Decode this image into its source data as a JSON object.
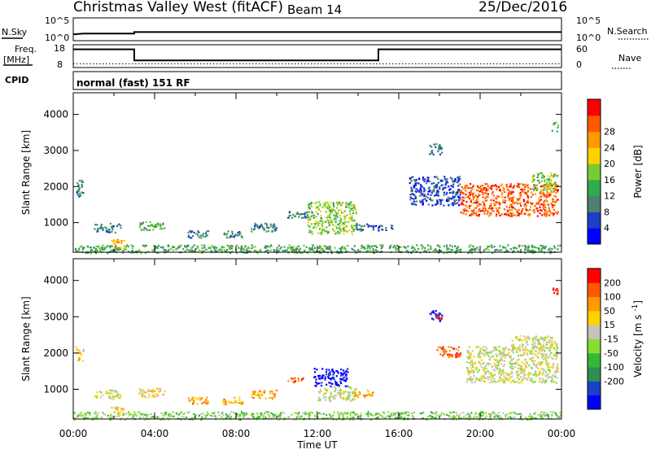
{
  "header": {
    "title": "Christmas Valley West (fitACF)",
    "beam": "Beam 14",
    "date": "25/Dec/2016"
  },
  "strip_labels": {
    "nsky": "N.Sky",
    "nsearch": "N.Search",
    "freq_line1": "Freq.",
    "freq_line2": "[MHz]",
    "nave": "Nave",
    "cpid": "CPID",
    "mode": "normal (fast) 151 RF"
  },
  "strip_ticks": {
    "noise_left": [
      "10^5",
      "10^0"
    ],
    "noise_right": [
      "10^5",
      "10^0"
    ],
    "freq_left": [
      "18",
      "8"
    ],
    "freq_right": [
      "60",
      "0"
    ]
  },
  "colors": {
    "frame": "#000000",
    "background": "#ffffff"
  },
  "chart_data": [
    {
      "type": "heatmap",
      "name": "power",
      "ylabel": "Slant Range [km]",
      "yticks": [
        1000,
        2000,
        3000,
        4000
      ],
      "ylim": [
        180,
        4600
      ],
      "xlim": [
        0,
        24
      ],
      "colorbar": {
        "label": "Power [dB]",
        "ticks": [
          "4",
          "8",
          "12",
          "16",
          "20",
          "24",
          "28"
        ],
        "colors": [
          "#0000ff",
          "#1a3fc8",
          "#4f7f6f",
          "#2faa4f",
          "#77cc33",
          "#ffd200",
          "#ff9a00",
          "#ff5a00",
          "#ff0000"
        ]
      },
      "regions": [
        {
          "t0": 0.1,
          "t1": 0.5,
          "r0": 1700,
          "r1": 2200,
          "level": 2
        },
        {
          "t0": 1.0,
          "t1": 2.3,
          "r0": 750,
          "r1": 1000,
          "level": 2
        },
        {
          "t0": 3.2,
          "t1": 4.5,
          "r0": 800,
          "r1": 1050,
          "level": 3
        },
        {
          "t0": 5.6,
          "t1": 6.7,
          "r0": 600,
          "r1": 800,
          "level": 2
        },
        {
          "t0": 7.3,
          "t1": 8.3,
          "r0": 600,
          "r1": 800,
          "level": 2
        },
        {
          "t0": 8.7,
          "t1": 10.0,
          "r0": 750,
          "r1": 1000,
          "level": 2
        },
        {
          "t0": 10.5,
          "t1": 11.8,
          "r0": 1150,
          "r1": 1350,
          "level": 2
        },
        {
          "t0": 11.5,
          "t1": 13.9,
          "r0": 700,
          "r1": 1600,
          "level": 4
        },
        {
          "t0": 13.8,
          "t1": 14.7,
          "r0": 800,
          "r1": 1000,
          "level": 2
        },
        {
          "t0": 14.7,
          "t1": 15.7,
          "r0": 800,
          "r1": 950,
          "level": 1
        },
        {
          "t0": 17.5,
          "t1": 18.1,
          "r0": 2900,
          "r1": 3200,
          "level": 2
        },
        {
          "t0": 16.5,
          "t1": 19.0,
          "r0": 1500,
          "r1": 2300,
          "level": 1
        },
        {
          "t0": 19.0,
          "t1": 23.8,
          "r0": 1200,
          "r1": 2100,
          "level": 7
        },
        {
          "t0": 22.5,
          "t1": 23.8,
          "r0": 1900,
          "r1": 2400,
          "level": 4
        },
        {
          "t0": 23.5,
          "t1": 23.8,
          "r0": 3550,
          "r1": 3800,
          "level": 3
        },
        {
          "t0": 0.0,
          "t1": 24.0,
          "r0": 180,
          "r1": 400,
          "level": 3
        },
        {
          "t0": 1.8,
          "t1": 2.5,
          "r0": 300,
          "r1": 550,
          "level": 6
        }
      ]
    },
    {
      "type": "heatmap",
      "name": "velocity",
      "ylabel": "Slant Range [km]",
      "yticks": [
        1000,
        2000,
        3000,
        4000
      ],
      "ylim": [
        180,
        4600
      ],
      "xlim": [
        0,
        24
      ],
      "xlabel": "Time UT",
      "xticks": [
        "00:00",
        "04:00",
        "08:00",
        "12:00",
        "16:00",
        "20:00",
        "00:00"
      ],
      "colorbar": {
        "label": "Velocity [m s",
        "label_sup": "-1",
        "label_end": "]",
        "ticks": [
          "200",
          "100",
          "50",
          "15",
          "-15",
          "-50",
          "-100",
          "-200"
        ],
        "colors": [
          "#0000ff",
          "#1a3fc8",
          "#2f8f4f",
          "#33b83a",
          "#88dd33",
          "#c4c4b8",
          "#ffd200",
          "#ff9a00",
          "#ff5a00",
          "#ff0000"
        ]
      },
      "regions": [
        {
          "t0": 0.1,
          "t1": 0.5,
          "r0": 1800,
          "r1": 2200,
          "level": 6
        },
        {
          "t0": 1.0,
          "t1": 2.3,
          "r0": 750,
          "r1": 1000,
          "level": 5
        },
        {
          "t0": 3.2,
          "t1": 4.6,
          "r0": 800,
          "r1": 1050,
          "level": 6
        },
        {
          "t0": 5.6,
          "t1": 6.7,
          "r0": 600,
          "r1": 800,
          "level": 7
        },
        {
          "t0": 7.3,
          "t1": 8.3,
          "r0": 600,
          "r1": 800,
          "level": 7
        },
        {
          "t0": 8.7,
          "t1": 10.0,
          "r0": 750,
          "r1": 1000,
          "level": 7
        },
        {
          "t0": 10.5,
          "t1": 11.4,
          "r0": 1200,
          "r1": 1350,
          "level": 8
        },
        {
          "t0": 11.8,
          "t1": 13.5,
          "r0": 1100,
          "r1": 1600,
          "level": 0
        },
        {
          "t0": 12.0,
          "t1": 13.9,
          "r0": 700,
          "r1": 1100,
          "level": 5
        },
        {
          "t0": 13.8,
          "t1": 14.7,
          "r0": 800,
          "r1": 1000,
          "level": 7
        },
        {
          "t0": 17.5,
          "t1": 18.1,
          "r0": 2900,
          "r1": 3200,
          "level": 0
        },
        {
          "t0": 17.8,
          "t1": 18.1,
          "r0": 2950,
          "r1": 3100,
          "level": 9
        },
        {
          "t0": 17.8,
          "t1": 19.0,
          "r0": 1900,
          "r1": 2200,
          "level": 8
        },
        {
          "t0": 19.3,
          "t1": 23.8,
          "r0": 1200,
          "r1": 2200,
          "level": 5
        },
        {
          "t0": 21.5,
          "t1": 23.8,
          "r0": 2100,
          "r1": 2500,
          "level": 5
        },
        {
          "t0": 23.5,
          "t1": 23.8,
          "r0": 3600,
          "r1": 3850,
          "level": 9
        },
        {
          "t0": 0.0,
          "t1": 24.0,
          "r0": 180,
          "r1": 400,
          "level": 4
        },
        {
          "t0": 1.8,
          "t1": 2.5,
          "r0": 300,
          "r1": 550,
          "level": 6
        }
      ]
    },
    {
      "type": "line",
      "name": "noise-strip",
      "series": [
        {
          "x": [
            0,
            0.5,
            3,
            3,
            24
          ],
          "y": [
            1.2,
            1.4,
            1.4,
            1.8,
            1.8
          ]
        }
      ],
      "xlim": [
        0,
        24
      ]
    },
    {
      "type": "line",
      "name": "frequency-strip",
      "series": [
        {
          "x": [
            0,
            3,
            3,
            15,
            15,
            24
          ],
          "y": [
            16.5,
            16.5,
            10.8,
            10.8,
            16.5,
            16.5
          ]
        }
      ],
      "nave": 10,
      "xlim": [
        0,
        24
      ],
      "ylim": [
        8,
        18
      ]
    }
  ]
}
